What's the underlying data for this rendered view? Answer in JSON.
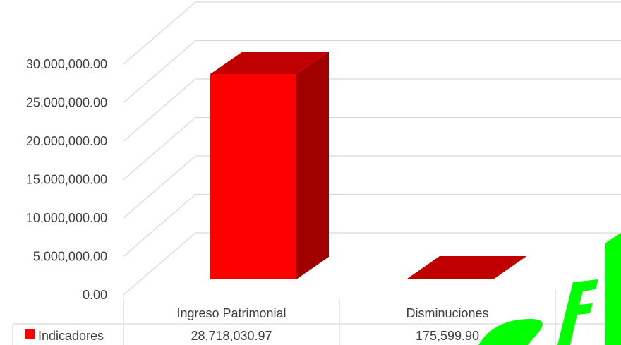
{
  "chart_data": {
    "type": "bar",
    "style": "3d-column",
    "categories": [
      "Ingreso Patrimonial",
      "Disminuciones"
    ],
    "series": [
      {
        "name": "Indicadores",
        "values": [
          28718030.97,
          175599.9
        ],
        "value_labels": [
          "28,718,030.97",
          "175,599.90"
        ],
        "color": "#ff0000"
      }
    ],
    "ylim": [
      0,
      30000000
    ],
    "yticks": [
      0,
      5000000,
      10000000,
      15000000,
      20000000,
      25000000,
      30000000
    ],
    "ytick_labels": [
      "0.00",
      "5,000,000.00",
      "10,000,000.00",
      "15,000,000.00",
      "20,000,000.00",
      "25,000,000.00",
      "30,000,000.00"
    ],
    "grid": true,
    "data_table": true,
    "colors": {
      "bar_front": "#ff0000",
      "bar_top": "#c00000",
      "bar_side": "#a00000",
      "grid": "#d9d9d9",
      "text": "#404040",
      "watermark": "#00ff00"
    }
  },
  "watermark": {
    "color": "#00ff00"
  }
}
